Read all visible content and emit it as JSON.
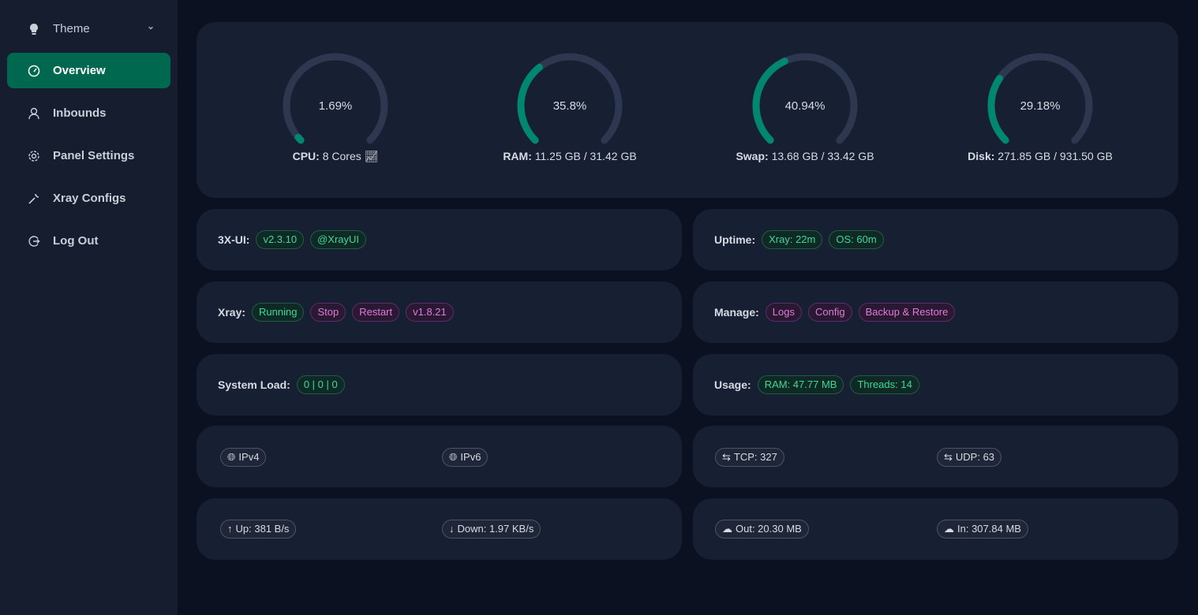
{
  "sidebar": {
    "items": [
      {
        "label": "Theme",
        "icon": "bulb-icon"
      },
      {
        "label": "Overview",
        "icon": "dashboard-icon",
        "active": true
      },
      {
        "label": "Inbounds",
        "icon": "user-icon"
      },
      {
        "label": "Panel Settings",
        "icon": "gear-icon"
      },
      {
        "label": "Xray Configs",
        "icon": "wrench-icon"
      },
      {
        "label": "Log Out",
        "icon": "logout-icon"
      }
    ]
  },
  "gauges": [
    {
      "value": "1.69%",
      "percent": 1.69,
      "label": "CPU:",
      "detail": "8 Cores"
    },
    {
      "value": "35.8%",
      "percent": 35.8,
      "label": "RAM:",
      "detail": "11.25 GB / 31.42 GB"
    },
    {
      "value": "40.94%",
      "percent": 40.94,
      "label": "Swap:",
      "detail": "13.68 GB / 33.42 GB"
    },
    {
      "value": "29.18%",
      "percent": 29.18,
      "label": "Disk:",
      "detail": "271.85 GB / 931.50 GB"
    }
  ],
  "colors": {
    "accent": "#008771",
    "track": "#2d3850",
    "active_nav": "#00684f"
  },
  "panel": {
    "label": "3X-UI:",
    "version": "v2.3.10",
    "channel": "@XrayUI"
  },
  "uptime": {
    "label": "Uptime:",
    "xray": "Xray: 22m",
    "os": "OS: 60m"
  },
  "xray": {
    "label": "Xray:",
    "status": "Running",
    "stop": "Stop",
    "restart": "Restart",
    "version": "v1.8.21"
  },
  "manage": {
    "label": "Manage:",
    "logs": "Logs",
    "config": "Config",
    "backup": "Backup & Restore"
  },
  "load": {
    "label": "System Load:",
    "value": "0 | 0 | 0"
  },
  "usage": {
    "label": "Usage:",
    "ram": "RAM: 47.77 MB",
    "threads": "Threads: 14"
  },
  "ip": {
    "v4": "IPv4",
    "v6": "IPv6"
  },
  "conn": {
    "tcp": "TCP: 327",
    "udp": "UDP: 63"
  },
  "speed": {
    "up": "Up: 381 B/s",
    "down": "Down: 1.97 KB/s"
  },
  "traffic": {
    "out": "Out: 20.30 MB",
    "in": "In: 307.84 MB"
  }
}
